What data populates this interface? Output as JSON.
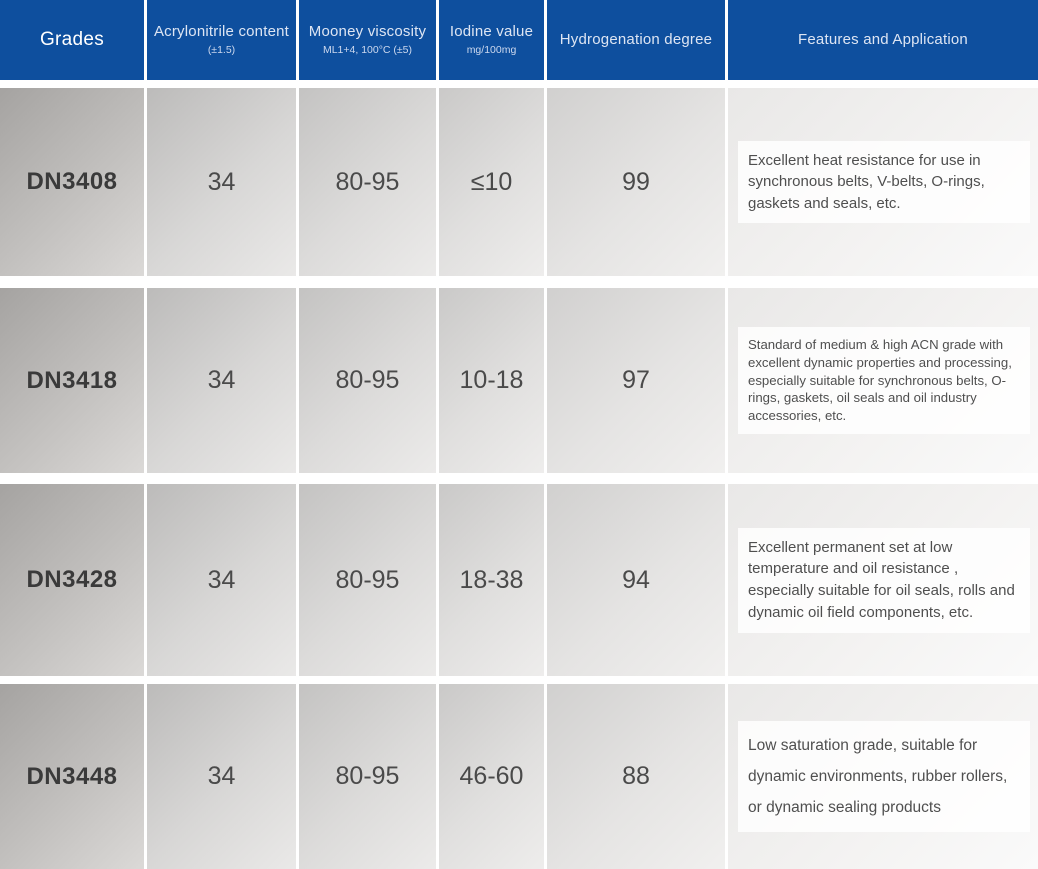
{
  "colors": {
    "header_bg": "#0e4f9e",
    "header_text": "#dde5f3",
    "grade_text": "#3a3a3a",
    "value_text": "#4a4a4a"
  },
  "header": {
    "grades_label": "Grades",
    "columns": [
      {
        "title": "Acrylonitrile content",
        "subtitle": "(±1.5)"
      },
      {
        "title": "Mooney viscosity",
        "subtitle": "ML1+4, 100°C (±5)"
      },
      {
        "title": "Iodine value",
        "subtitle": "mg/100mg"
      },
      {
        "title": "Hydrogenation degree",
        "subtitle": ""
      },
      {
        "title": "Features and Application",
        "subtitle": ""
      }
    ]
  },
  "rows": [
    {
      "grade": "DN3408",
      "acrylonitrile_content": "34",
      "mooney_viscosity": "80-95",
      "iodine_value": "≤10",
      "hydrogenation_degree": "99",
      "features": "Excellent heat resistance for use in synchronous belts, V-belts, O-rings, gaskets and seals, etc."
    },
    {
      "grade": "DN3418",
      "acrylonitrile_content": "34",
      "mooney_viscosity": "80-95",
      "iodine_value": "10-18",
      "hydrogenation_degree": "97",
      "features": "Standard of medium & high ACN grade with excellent dynamic properties and processing, especially  suitable  for synchronous belts, O-rings, gaskets, oil seals and oil industry accessories, etc."
    },
    {
      "grade": "DN3428",
      "acrylonitrile_content": "34",
      "mooney_viscosity": "80-95",
      "iodine_value": "18-38",
      "hydrogenation_degree": "94",
      "features": "Excellent permanent set at low temperature and oil resistance , especially suitable for oil seals, rolls and dynamic oil field components, etc."
    },
    {
      "grade": "DN3448",
      "acrylonitrile_content": "34",
      "mooney_viscosity": "80-95",
      "iodine_value": "46-60",
      "hydrogenation_degree": "88",
      "features": "Low saturation grade, suitable for dynamic environments, rubber rollers, or dynamic sealing products"
    }
  ]
}
